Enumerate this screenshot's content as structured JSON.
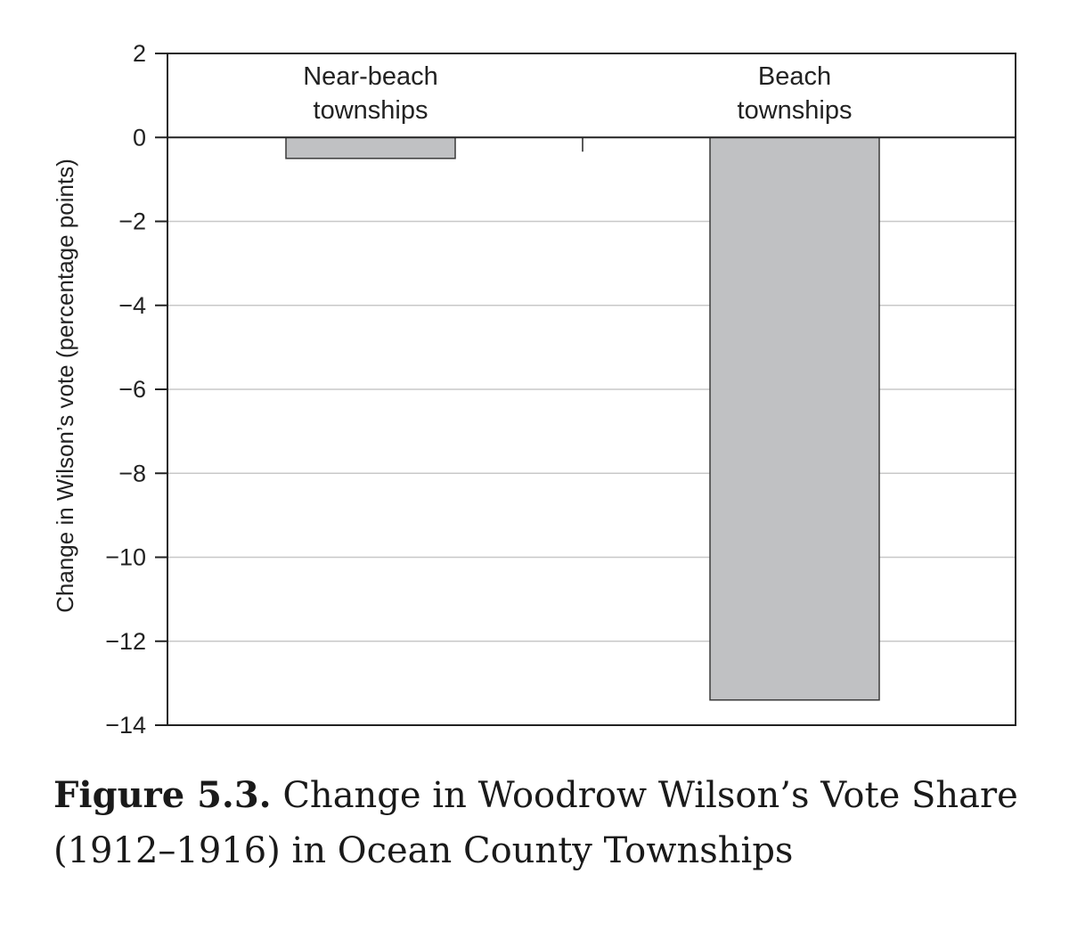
{
  "chart_data": {
    "type": "bar",
    "categories": [
      "Near-beach townships",
      "Beach townships"
    ],
    "category_label_lines": [
      [
        "Near-beach",
        "townships"
      ],
      [
        "Beach",
        "townships"
      ]
    ],
    "values": [
      -0.5,
      -13.4
    ],
    "ylabel": "Change in Wilson’s vote (percentage points)",
    "xlabel": "",
    "ylim": [
      -14,
      2
    ],
    "yticks": [
      2,
      0,
      -2,
      -4,
      -6,
      -8,
      -10,
      -12,
      -14
    ],
    "ytick_labels": [
      "2",
      "0",
      "−2",
      "−4",
      "−6",
      "−8",
      "−10",
      "−12",
      "−14"
    ],
    "grid": true,
    "bar_color": "#c0c1c3",
    "grid_color": "#c8c8c8"
  },
  "caption": {
    "number": "Figure 5.3.",
    "text": " Change in Woodrow Wilson’s Vote Share (1912–1916) in Ocean County Townships"
  }
}
